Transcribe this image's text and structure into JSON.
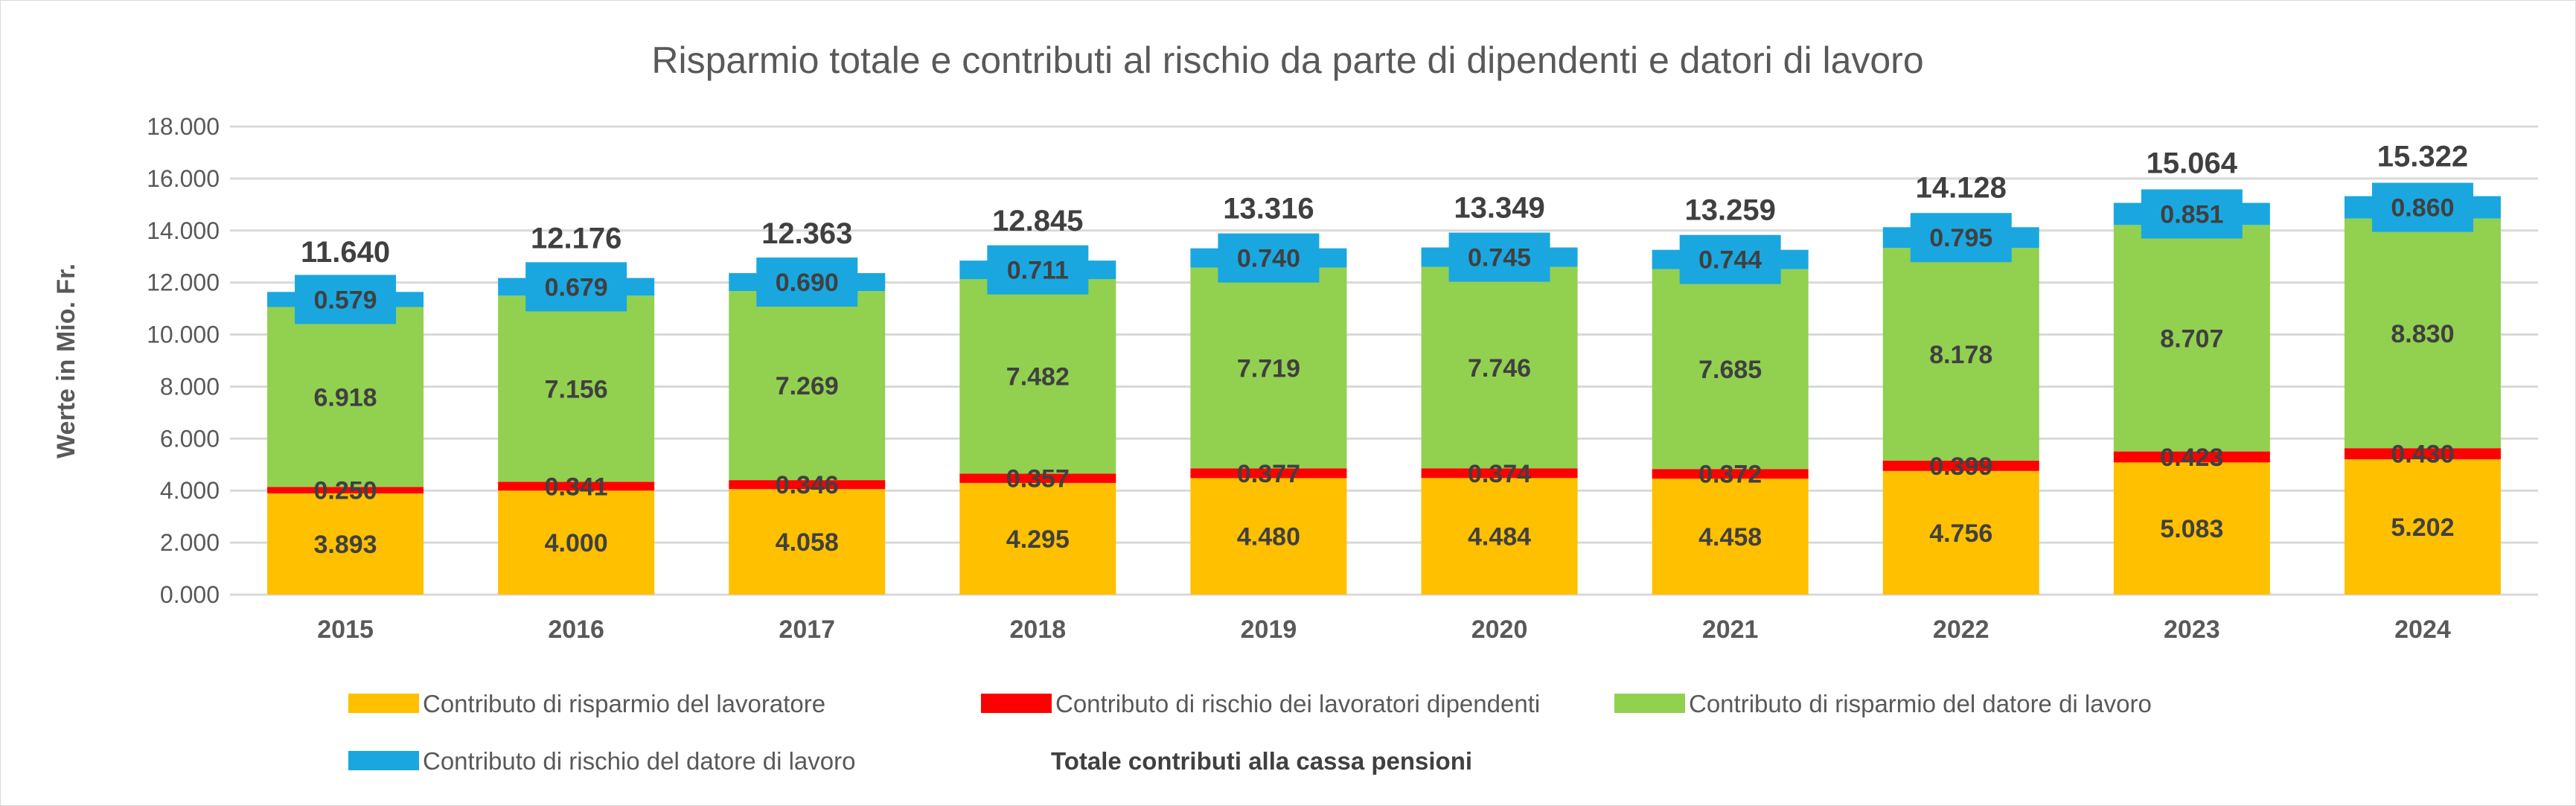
{
  "chart_data": {
    "type": "bar",
    "stacked": true,
    "title": "Risparmio totale e contributi al rischio da parte di dipendenti e datori di lavoro",
    "xlabel": "",
    "ylabel": "Werte in Mio. Fr.",
    "ylim": [
      0,
      18000
    ],
    "yticks": [
      0,
      2000,
      4000,
      6000,
      8000,
      10000,
      12000,
      14000,
      16000,
      18000
    ],
    "ytick_labels": [
      "0.000",
      "2.000",
      "4.000",
      "6.000",
      "8.000",
      "10.000",
      "12.000",
      "14.000",
      "16.000",
      "18.000"
    ],
    "grid": true,
    "legend_position": "bottom",
    "categories": [
      "2015",
      "2016",
      "2017",
      "2018",
      "2019",
      "2020",
      "2021",
      "2022",
      "2023",
      "2024"
    ],
    "series": [
      {
        "name": "Contributo di risparmio del lavoratore",
        "color": "#FFC000",
        "values": [
          3893,
          4000,
          4058,
          4295,
          4480,
          4484,
          4458,
          4756,
          5083,
          5202
        ],
        "labels": [
          "3.893",
          "4.000",
          "4.058",
          "4.295",
          "4.480",
          "4.484",
          "4.458",
          "4.756",
          "5.083",
          "5.202"
        ]
      },
      {
        "name": "Contributo di rischio dei lavoratori dipendenti",
        "color": "#FF0000",
        "values": [
          250,
          341,
          346,
          357,
          377,
          374,
          372,
          399,
          423,
          430
        ],
        "labels": [
          "0.250",
          "0.341",
          "0.346",
          "0.357",
          "0.377",
          "0.374",
          "0.372",
          "0.399",
          "0.423",
          "0.430"
        ]
      },
      {
        "name": "Contributo di risparmio del datore di lavoro",
        "color": "#92D050",
        "values": [
          6918,
          7156,
          7269,
          7482,
          7719,
          7746,
          7685,
          8178,
          8707,
          8830
        ],
        "labels": [
          "6.918",
          "7.156",
          "7.269",
          "7.482",
          "7.719",
          "7.746",
          "7.685",
          "8.178",
          "8.707",
          "8.830"
        ]
      },
      {
        "name": "Contributo di rischio del datore di lavoro",
        "color": "#1AA7E0",
        "values": [
          579,
          679,
          690,
          711,
          740,
          745,
          744,
          795,
          851,
          860
        ],
        "labels": [
          "0.579",
          "0.679",
          "0.690",
          "0.711",
          "0.740",
          "0.745",
          "0.744",
          "0.795",
          "0.851",
          "0.860"
        ]
      }
    ],
    "totals": {
      "name": "Totale contributi alla cassa pensioni",
      "values": [
        11640,
        12176,
        12363,
        12845,
        13316,
        13349,
        13259,
        14128,
        15064,
        15322
      ],
      "labels": [
        "11.640",
        "12.176",
        "12.363",
        "12.845",
        "13.316",
        "13.349",
        "13.259",
        "14.128",
        "15.064",
        "15.322"
      ]
    }
  }
}
